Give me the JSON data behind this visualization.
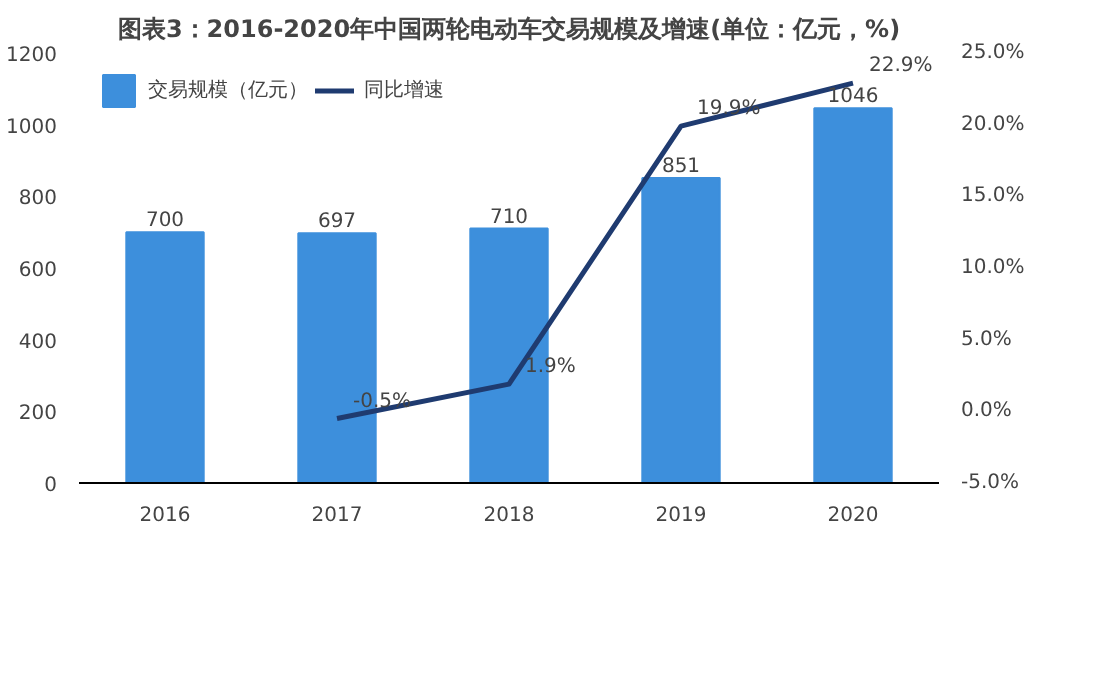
{
  "chart_data": {
    "type": "bar",
    "title": "图表3：2016-2020年中国两轮电动车交易规模及增速(单位：亿元，%)",
    "categories": [
      "2016",
      "2017",
      "2018",
      "2019",
      "2020"
    ],
    "series": [
      {
        "name": "交易规模（亿元）",
        "color": "#3d8fdc",
        "values": [
          700,
          697,
          710,
          851,
          1046
        ],
        "value_labels": [
          "700",
          "697",
          "710",
          "851",
          "1046"
        ]
      },
      {
        "name": "同比增速",
        "type": "line",
        "axis": "y2",
        "color": "#1f3b70",
        "values": [
          null,
          -0.5,
          1.9,
          19.9,
          22.9
        ],
        "value_labels": [
          null,
          "-0.5%",
          "1.9%",
          "19.9%",
          "22.9%"
        ]
      }
    ],
    "ylim": [
      0,
      1200
    ],
    "yticks": [
      0,
      200,
      400,
      600,
      800,
      1000,
      1200
    ],
    "y2lim": [
      -5,
      25
    ],
    "y2ticks": [
      {
        "value": -5,
        "label": "-5.0%"
      },
      {
        "value": 0,
        "label": "0.0%"
      },
      {
        "value": 5,
        "label": "5.0%"
      },
      {
        "value": 10,
        "label": "10.0%"
      },
      {
        "value": 15,
        "label": "15.0%"
      },
      {
        "value": 20,
        "label": "20.0%"
      },
      {
        "value": 25,
        "label": "25.0%"
      }
    ],
    "grid": false,
    "legend": "top left",
    "marker": "none",
    "line_style": "solid"
  }
}
